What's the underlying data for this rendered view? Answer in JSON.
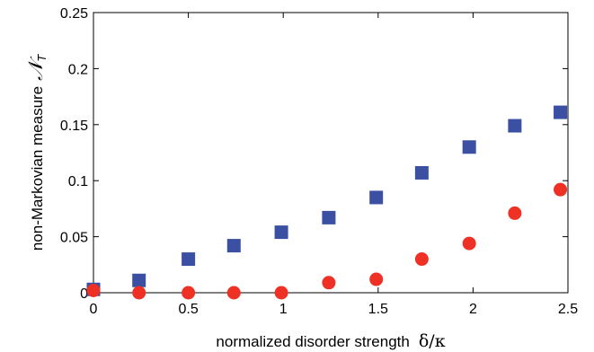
{
  "chart_data": {
    "type": "scatter",
    "xlabel_text": "normalized disorder strength",
    "xlabel_math": "δ/κ",
    "ylabel_text": "non-Markovian measure",
    "ylabel_symbol": "𝒩",
    "ylabel_subscript": "T",
    "xlim": [
      0,
      2.5
    ],
    "ylim": [
      0,
      0.25
    ],
    "x_ticks": [
      "0",
      "0.5",
      "1",
      "1.5",
      "2",
      "2.5"
    ],
    "y_ticks": [
      "0",
      "0.05",
      "0.1",
      "0.15",
      "0.2",
      "0.25"
    ],
    "grid": false,
    "series": [
      {
        "marker": "square",
        "color": "#3b50a3",
        "points": [
          [
            0.0,
            0.003
          ],
          [
            0.24,
            0.011
          ],
          [
            0.5,
            0.03
          ],
          [
            0.74,
            0.042
          ],
          [
            0.99,
            0.054
          ],
          [
            1.24,
            0.067
          ],
          [
            1.49,
            0.085
          ],
          [
            1.73,
            0.107
          ],
          [
            1.98,
            0.13
          ],
          [
            2.22,
            0.149
          ],
          [
            2.46,
            0.161
          ]
        ]
      },
      {
        "marker": "circle",
        "color": "#ee3124",
        "points": [
          [
            0.0,
            0.002
          ],
          [
            0.24,
            0.0
          ],
          [
            0.5,
            0.0
          ],
          [
            0.74,
            0.0
          ],
          [
            0.99,
            0.0
          ],
          [
            1.24,
            0.009
          ],
          [
            1.49,
            0.012
          ],
          [
            1.73,
            0.03
          ],
          [
            1.98,
            0.044
          ],
          [
            2.22,
            0.071
          ],
          [
            2.46,
            0.092
          ]
        ]
      }
    ]
  }
}
